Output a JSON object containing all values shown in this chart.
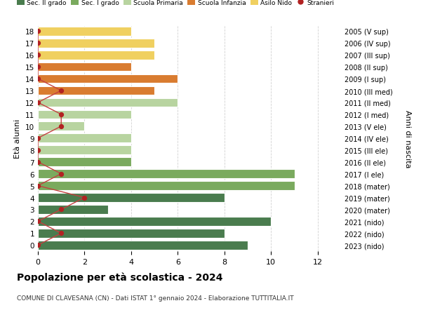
{
  "ages": [
    18,
    17,
    16,
    15,
    14,
    13,
    12,
    11,
    10,
    9,
    8,
    7,
    6,
    5,
    4,
    3,
    2,
    1,
    0
  ],
  "right_labels": [
    "2005 (V sup)",
    "2006 (IV sup)",
    "2007 (III sup)",
    "2008 (II sup)",
    "2009 (I sup)",
    "2010 (III med)",
    "2011 (II med)",
    "2012 (I med)",
    "2013 (V ele)",
    "2014 (IV ele)",
    "2015 (III ele)",
    "2016 (II ele)",
    "2017 (I ele)",
    "2018 (mater)",
    "2019 (mater)",
    "2020 (mater)",
    "2021 (nido)",
    "2022 (nido)",
    "2023 (nido)"
  ],
  "bar_values": [
    9,
    8,
    10,
    3,
    8,
    11,
    11,
    4,
    4,
    4,
    2,
    4,
    6,
    5,
    6,
    4,
    5,
    5,
    4
  ],
  "bar_colors": [
    "#4a7c4e",
    "#4a7c4e",
    "#4a7c4e",
    "#4a7c4e",
    "#4a7c4e",
    "#7aaa5e",
    "#7aaa5e",
    "#7aaa5e",
    "#b8d4a0",
    "#b8d4a0",
    "#b8d4a0",
    "#b8d4a0",
    "#b8d4a0",
    "#d97c30",
    "#d97c30",
    "#d97c30",
    "#f0d060",
    "#f0d060",
    "#f0d060"
  ],
  "stranieri_values": [
    0,
    1,
    0,
    1,
    2,
    0,
    1,
    0,
    0,
    0,
    1,
    1,
    0,
    1,
    0,
    0,
    0,
    0,
    0
  ],
  "stranieri_color": "#b22222",
  "stranieri_line_color": "#c44040",
  "legend_labels": [
    "Sec. II grado",
    "Sec. I grado",
    "Scuola Primaria",
    "Scuola Infanzia",
    "Asilo Nido",
    "Stranieri"
  ],
  "legend_colors": [
    "#4a7c4e",
    "#7aaa5e",
    "#b8d4a0",
    "#d97c30",
    "#f0d060",
    "#b22222"
  ],
  "ylabel_left": "Età alunni",
  "ylabel_right": "Anni di nascita",
  "title": "Popolazione per età scolastica - 2024",
  "subtitle": "COMUNE DI CLAVESANA (CN) - Dati ISTAT 1° gennaio 2024 - Elaborazione TUTTITALIA.IT",
  "xlim": [
    0,
    13
  ],
  "background_color": "#ffffff",
  "grid_color": "#cccccc"
}
